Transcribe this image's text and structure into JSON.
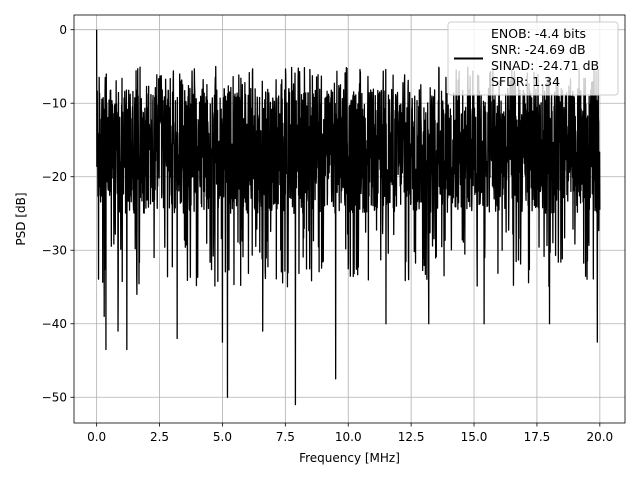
{
  "chart_data": {
    "type": "line",
    "title": "",
    "xlabel": "Frequency [MHz]",
    "ylabel": "PSD [dB]",
    "xlim": [
      -0.9,
      21.0
    ],
    "ylim": [
      -53.5,
      2.0
    ],
    "x_ticks": [
      0.0,
      2.5,
      5.0,
      7.5,
      10.0,
      12.5,
      15.0,
      17.5,
      20.0
    ],
    "x_tick_labels": [
      "0.0",
      "2.5",
      "5.0",
      "7.5",
      "10.0",
      "12.5",
      "15.0",
      "17.5",
      "20.0"
    ],
    "y_ticks": [
      0,
      -10,
      -20,
      -30,
      -40,
      -50
    ],
    "y_tick_labels": [
      "0",
      "−10",
      "−20",
      "−30",
      "−40",
      "−50"
    ],
    "grid": true,
    "legend_placement": "upper-right",
    "line_color": "#000000",
    "series": [
      {
        "name": "ENOB: -4.4 bits\nSNR: -24.69 dB\nSINAD: -24.71 dB\nSFDR: 1.34",
        "x_range": [
          0.0,
          20.0
        ],
        "noise_floor_db": [
          -35,
          -5
        ],
        "typical_band_db": [
          -25,
          -8
        ],
        "peaks": [
          {
            "x": 0.0,
            "y": 0.0
          }
        ],
        "dips": [
          {
            "x": 0.3,
            "y": -39
          },
          {
            "x": 0.37,
            "y": -43.5
          },
          {
            "x": 0.85,
            "y": -41
          },
          {
            "x": 1.2,
            "y": -43.5
          },
          {
            "x": 1.6,
            "y": -36
          },
          {
            "x": 3.2,
            "y": -42
          },
          {
            "x": 5.0,
            "y": -42.5
          },
          {
            "x": 5.2,
            "y": -50
          },
          {
            "x": 6.6,
            "y": -41
          },
          {
            "x": 7.9,
            "y": -51
          },
          {
            "x": 9.5,
            "y": -47.5
          },
          {
            "x": 11.5,
            "y": -40
          },
          {
            "x": 13.2,
            "y": -40
          },
          {
            "x": 15.4,
            "y": -40
          },
          {
            "x": 18.0,
            "y": -40
          },
          {
            "x": 19.9,
            "y": -42.5
          }
        ]
      }
    ]
  }
}
